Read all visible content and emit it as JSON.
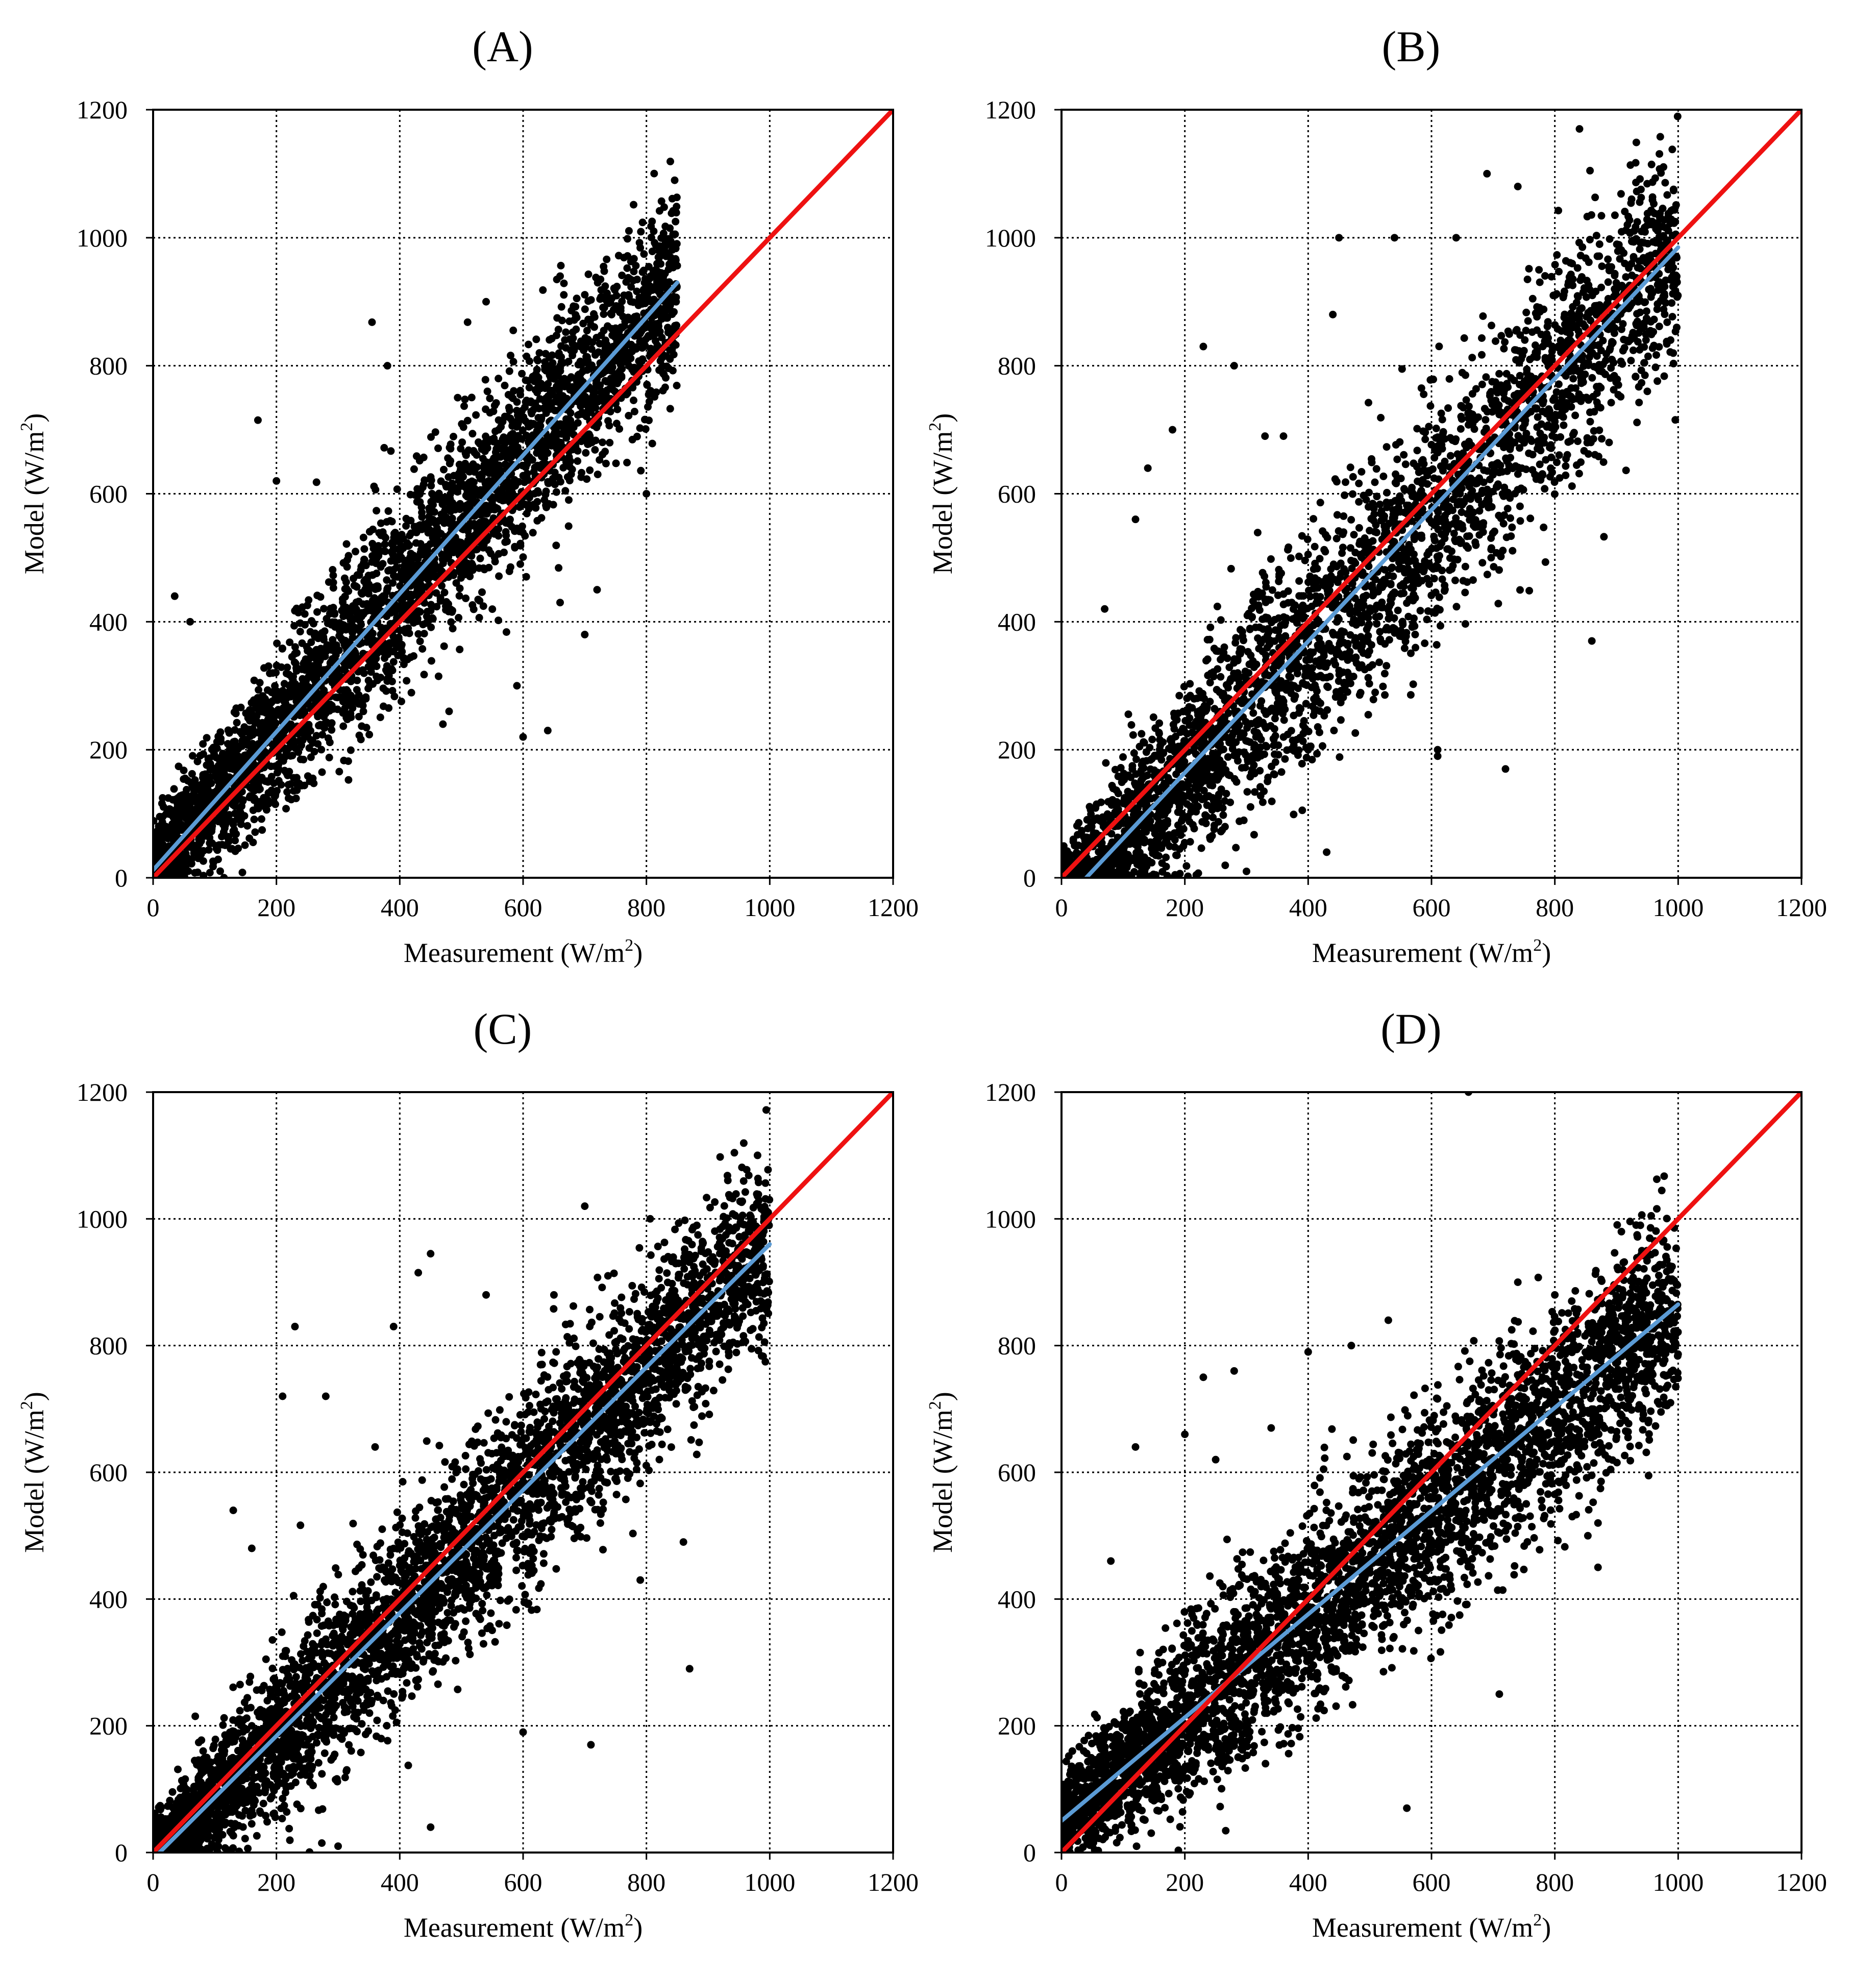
{
  "figure": {
    "panels": [
      "A",
      "B",
      "C",
      "D"
    ]
  },
  "chart_data": [
    {
      "id": "A",
      "type": "scatter",
      "title": "(A)",
      "xlabel": "Measurement (W/m",
      "xlabel_sup": "2",
      "xlabel_end": ")",
      "ylabel": "Model (W/m",
      "ylabel_sup": "2",
      "ylabel_end": ")",
      "xlim": [
        0,
        1200
      ],
      "ylim": [
        0,
        1200
      ],
      "xticks": [
        0,
        200,
        400,
        600,
        800,
        1000,
        1200
      ],
      "yticks": [
        0,
        200,
        400,
        600,
        800,
        1000,
        1200
      ],
      "grid": true,
      "marker_color": "#000000",
      "scatter_model": {
        "n": 3600,
        "x_max": 850,
        "slope": 1.08,
        "intercept": 15,
        "noise_sd": 75
      },
      "lines": [
        {
          "role": "one-to-one",
          "color": "#ee1111",
          "x": [
            0,
            1200
          ],
          "y": [
            0,
            1200
          ]
        },
        {
          "role": "regression",
          "color": "#5b9bd5",
          "x": [
            0,
            850
          ],
          "y": [
            12,
            930
          ]
        }
      ],
      "outliers": [
        [
          355,
          868
        ],
        [
          170,
          715
        ],
        [
          510,
          868
        ],
        [
          540,
          900
        ],
        [
          640,
          230
        ],
        [
          720,
          450
        ],
        [
          660,
          430
        ],
        [
          700,
          380
        ],
        [
          590,
          300
        ],
        [
          600,
          220
        ],
        [
          480,
          260
        ],
        [
          470,
          240
        ],
        [
          35,
          440
        ],
        [
          60,
          400
        ],
        [
          200,
          620
        ],
        [
          265,
          618
        ],
        [
          560,
          780
        ],
        [
          660,
          940
        ],
        [
          380,
          800
        ],
        [
          800,
          600
        ]
      ]
    },
    {
      "id": "B",
      "type": "scatter",
      "title": "(B)",
      "xlabel": "Measurement (W/m",
      "xlabel_sup": "2",
      "xlabel_end": ")",
      "ylabel": "Model (W/m",
      "ylabel_sup": "2",
      "ylabel_end": ")",
      "xlim": [
        0,
        1200
      ],
      "ylim": [
        0,
        1200
      ],
      "xticks": [
        0,
        200,
        400,
        600,
        800,
        1000,
        1200
      ],
      "yticks": [
        0,
        200,
        400,
        600,
        800,
        1000,
        1200
      ],
      "grid": true,
      "marker_color": "#000000",
      "scatter_model": {
        "n": 3400,
        "x_max": 1000,
        "slope": 1.0,
        "intercept": -40,
        "noise_sd": 90,
        "curve": 0.00012
      },
      "lines": [
        {
          "role": "one-to-one",
          "color": "#ee1111",
          "x": [
            0,
            1200
          ],
          "y": [
            0,
            1200
          ]
        },
        {
          "role": "regression",
          "color": "#5b9bd5",
          "x": [
            40,
            1000
          ],
          "y": [
            0,
            985
          ]
        }
      ],
      "outliers": [
        [
          180,
          700
        ],
        [
          140,
          640
        ],
        [
          230,
          830
        ],
        [
          280,
          800
        ],
        [
          330,
          690
        ],
        [
          360,
          690
        ],
        [
          450,
          1000
        ],
        [
          540,
          1000
        ],
        [
          640,
          1000
        ],
        [
          690,
          1100
        ],
        [
          740,
          1080
        ],
        [
          840,
          1170
        ],
        [
          860,
          370
        ],
        [
          950,
          760
        ],
        [
          720,
          170
        ],
        [
          290,
          350
        ],
        [
          430,
          40
        ],
        [
          440,
          880
        ],
        [
          400,
          200
        ],
        [
          610,
          190
        ],
        [
          610,
          200
        ],
        [
          120,
          560
        ],
        [
          300,
          10
        ],
        [
          70,
          420
        ]
      ]
    },
    {
      "id": "C",
      "type": "scatter",
      "title": "(C)",
      "xlabel": "Measurement (W/m",
      "xlabel_sup": "2",
      "xlabel_end": ")",
      "ylabel": "Model (W/m",
      "ylabel_sup": "2",
      "ylabel_end": ")",
      "xlim": [
        0,
        1200
      ],
      "ylim": [
        0,
        1200
      ],
      "xticks": [
        0,
        200,
        400,
        600,
        800,
        1000,
        1200
      ],
      "yticks": [
        0,
        200,
        400,
        600,
        800,
        1000,
        1200
      ],
      "grid": true,
      "marker_color": "#000000",
      "scatter_model": {
        "n": 4200,
        "x_max": 1000,
        "slope": 0.97,
        "intercept": -10,
        "noise_sd": 75
      },
      "lines": [
        {
          "role": "one-to-one",
          "color": "#ee1111",
          "x": [
            0,
            1200
          ],
          "y": [
            0,
            1200
          ]
        },
        {
          "role": "regression",
          "color": "#5b9bd5",
          "x": [
            0,
            1000
          ],
          "y": [
            -10,
            960
          ]
        }
      ],
      "outliers": [
        [
          230,
          830
        ],
        [
          450,
          945
        ],
        [
          390,
          830
        ],
        [
          430,
          915
        ],
        [
          700,
          1020
        ],
        [
          870,
          290
        ],
        [
          860,
          490
        ],
        [
          710,
          170
        ],
        [
          600,
          190
        ],
        [
          210,
          720
        ],
        [
          280,
          720
        ],
        [
          360,
          640
        ],
        [
          130,
          540
        ],
        [
          160,
          480
        ],
        [
          450,
          40
        ],
        [
          300,
          10
        ],
        [
          540,
          880
        ],
        [
          650,
          880
        ],
        [
          790,
          430
        ]
      ]
    },
    {
      "id": "D",
      "type": "scatter",
      "title": "(D)",
      "xlabel": "Measurement (W/m",
      "xlabel_sup": "2",
      "xlabel_end": ")",
      "ylabel": "Model (W/m",
      "ylabel_sup": "2",
      "ylabel_end": ")",
      "xlim": [
        0,
        1200
      ],
      "ylim": [
        0,
        1200
      ],
      "xticks": [
        0,
        200,
        400,
        600,
        800,
        1000,
        1200
      ],
      "yticks": [
        0,
        200,
        400,
        600,
        800,
        1000,
        1200
      ],
      "grid": true,
      "marker_color": "#000000",
      "scatter_model": {
        "n": 4000,
        "x_max": 1000,
        "slope": 0.81,
        "intercept": 50,
        "noise_sd": 80
      },
      "lines": [
        {
          "role": "one-to-one",
          "color": "#ee1111",
          "x": [
            0,
            1200
          ],
          "y": [
            0,
            1200
          ]
        },
        {
          "role": "regression",
          "color": "#5b9bd5",
          "x": [
            0,
            1000
          ],
          "y": [
            50,
            865
          ]
        }
      ],
      "outliers": [
        [
          280,
          760
        ],
        [
          230,
          750
        ],
        [
          200,
          660
        ],
        [
          250,
          620
        ],
        [
          120,
          640
        ],
        [
          80,
          460
        ],
        [
          400,
          790
        ],
        [
          470,
          800
        ],
        [
          530,
          840
        ],
        [
          870,
          450
        ],
        [
          870,
          520
        ],
        [
          710,
          250
        ],
        [
          740,
          900
        ],
        [
          800,
          880
        ],
        [
          340,
          670
        ],
        [
          560,
          70
        ],
        [
          660,
          1200
        ]
      ]
    }
  ]
}
